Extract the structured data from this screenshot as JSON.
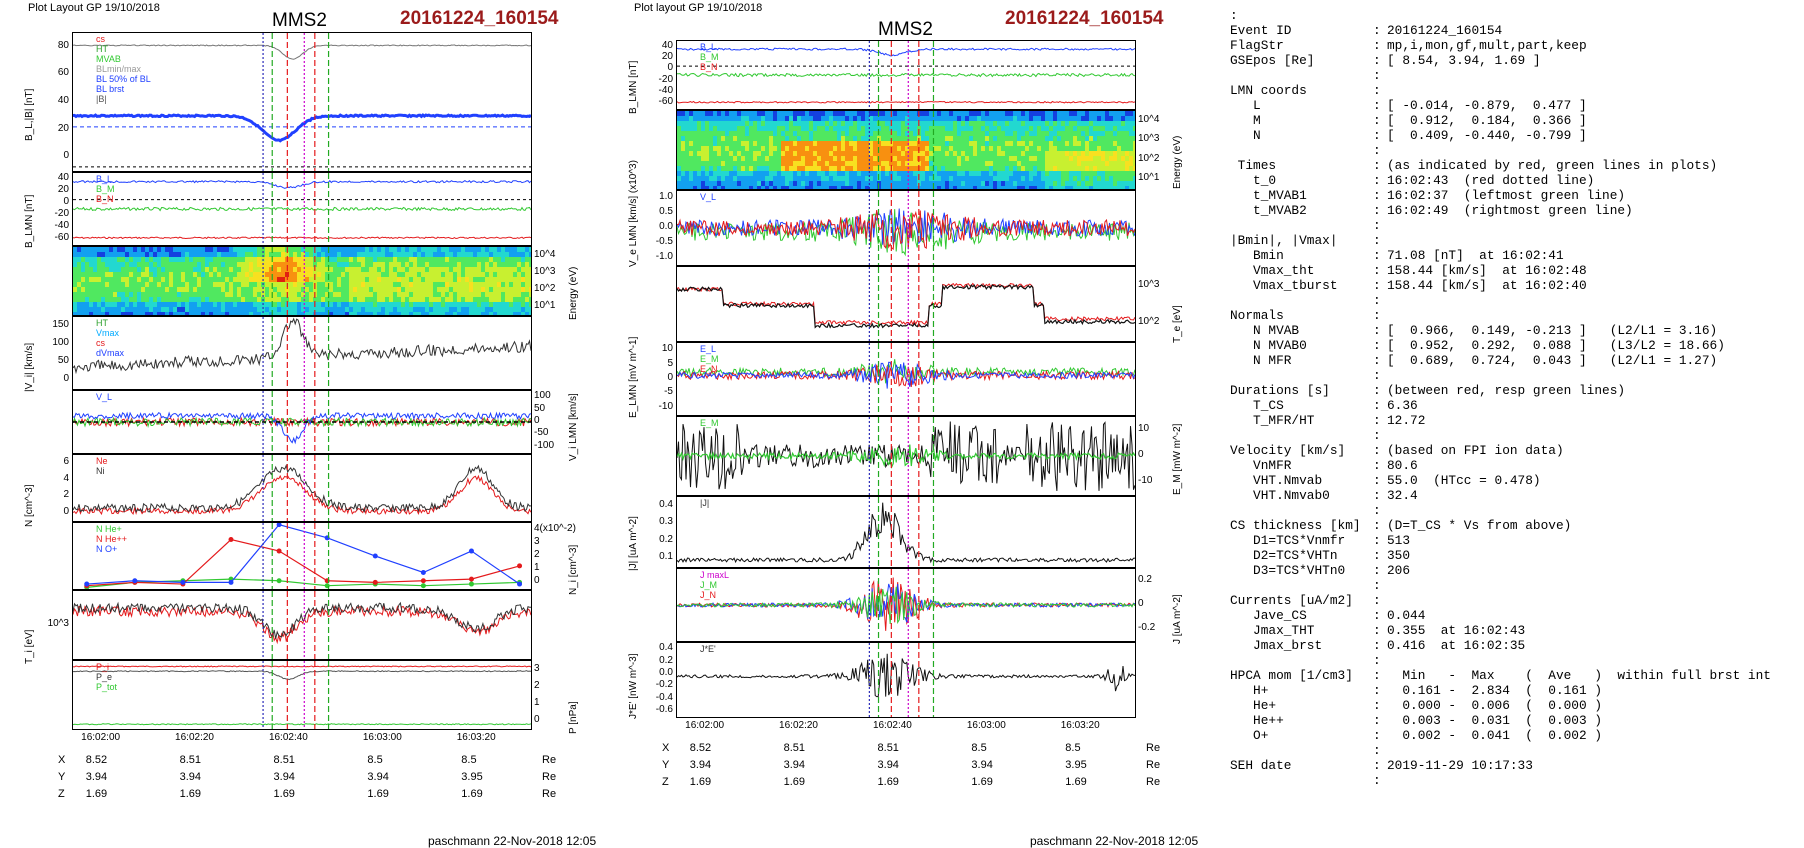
{
  "left": {
    "header": "Plot Layout GP 19/10/2018",
    "title": "MMS2",
    "event": "20161224_160154",
    "footer": "paschmann 22-Nov-2018 12:05",
    "time_ticks": [
      "16:02:00",
      "16:02:20",
      "16:02:40",
      "16:03:00",
      "16:03:20"
    ],
    "positions": {
      "labels": [
        "X",
        "Y",
        "Z"
      ],
      "unit": "Re",
      "rows": [
        [
          "8.52",
          "8.51",
          "8.51",
          "8.5",
          "8.5"
        ],
        [
          "3.94",
          "3.94",
          "3.94",
          "3.94",
          "3.95"
        ],
        [
          "1.69",
          "1.69",
          "1.69",
          "1.69",
          "1.69"
        ]
      ]
    },
    "panels": [
      {
        "ylabel": "B_L,|B| [nT]",
        "left_ticks": [
          "80",
          "60",
          "40",
          "20",
          "0"
        ],
        "legend": [
          "cs",
          "HT",
          "MVAB",
          "BLmin/max",
          "BL 50% of BL",
          "BL brst",
          "|B|"
        ],
        "legend_colors": [
          "#e41a1c",
          "#2ca02c",
          "#31c831",
          "#999999",
          "#2040ff",
          "#2040ff",
          "#555555"
        ]
      },
      {
        "ylabel": "B_LMN [nT]",
        "left_ticks": [
          "40",
          "20",
          "0",
          "-20",
          "-40",
          "-60"
        ],
        "legend": [
          "B_L",
          "B_M",
          "B_N"
        ],
        "legend_colors": [
          "#2040ff",
          "#31c831",
          "#e41a1c"
        ]
      },
      {
        "ylabel": "Energy (eV)",
        "right_ticks": [
          "10^4",
          "10^3",
          "10^2",
          "10^1"
        ]
      },
      {
        "ylabel": "|V_i| [km/s]",
        "left_ticks": [
          "150",
          "100",
          "50",
          "0"
        ],
        "legend": [
          "HT",
          "Vmax",
          "cs",
          "dVmax"
        ],
        "legend_colors": [
          "#2ca02c",
          "#00aaff",
          "#e41a1c",
          "#2040ff"
        ]
      },
      {
        "ylabel": "V_i LMN [km/s]",
        "right_ticks": [
          "100",
          "50",
          "0",
          "-50",
          "-100"
        ],
        "legend": [
          "V_L"
        ],
        "legend_colors": [
          "#2040ff"
        ]
      },
      {
        "ylabel": "N [cm^-3]",
        "left_ticks": [
          "6",
          "4",
          "2",
          "0"
        ],
        "legend": [
          "Ne",
          "Ni"
        ],
        "legend_colors": [
          "#e41a1c",
          "#333333"
        ]
      },
      {
        "ylabel": "N_i [cm^-3]",
        "right_ticks": [
          "4(x10^-2)",
          "3",
          "2",
          "1",
          "0"
        ],
        "legend": [
          "N He+",
          "N He++",
          "N O+"
        ],
        "legend_colors": [
          "#31c831",
          "#e41a1c",
          "#2040ff"
        ]
      },
      {
        "ylabel": "T_i [eV]",
        "left_ticks": [
          "10^3"
        ]
      },
      {
        "ylabel": "P [nPa]",
        "right_ticks": [
          "3",
          "2",
          "1",
          "0"
        ],
        "legend": [
          "P_i",
          "P_e",
          "P_tot"
        ],
        "legend_colors": [
          "#e41a1c",
          "#333333",
          "#31c831"
        ]
      }
    ]
  },
  "middle": {
    "header": "Plot layout GP 19/10/2018",
    "title": "MMS2",
    "event": "20161224_160154",
    "footer": "paschmann 22-Nov-2018 12:05",
    "time_ticks": [
      "16:02:00",
      "16:02:20",
      "16:02:40",
      "16:03:00",
      "16:03:20"
    ],
    "positions": {
      "labels": [
        "X",
        "Y",
        "Z"
      ],
      "unit": "Re",
      "rows": [
        [
          "8.52",
          "8.51",
          "8.51",
          "8.5",
          "8.5"
        ],
        [
          "3.94",
          "3.94",
          "3.94",
          "3.94",
          "3.95"
        ],
        [
          "1.69",
          "1.69",
          "1.69",
          "1.69",
          "1.69"
        ]
      ]
    },
    "panels": [
      {
        "ylabel": "B_LMN [nT]",
        "left_ticks": [
          "40",
          "20",
          "0",
          "-20",
          "-40",
          "-60"
        ],
        "legend": [
          "B_L",
          "B_M",
          "B_N"
        ],
        "legend_colors": [
          "#2040ff",
          "#31c831",
          "#e41a1c"
        ]
      },
      {
        "ylabel": "Energy (eV)",
        "right_ticks": [
          "10^4",
          "10^3",
          "10^2",
          "10^1"
        ]
      },
      {
        "ylabel": "V_e LMN [km/s] (x10^3)",
        "left_ticks": [
          "1.0",
          "0.5",
          "0.0",
          "-0.5",
          "-1.0"
        ],
        "legend": [
          "V_L"
        ],
        "legend_colors": [
          "#2040ff"
        ]
      },
      {
        "ylabel": "T_e [eV]",
        "right_ticks": [
          "10^3",
          "10^2"
        ]
      },
      {
        "ylabel": "E_LMN [mV m^-1]",
        "left_ticks": [
          "10",
          "5",
          "0",
          "-5",
          "-10"
        ],
        "legend": [
          "E_L",
          "E_M",
          "E_N"
        ],
        "legend_colors": [
          "#2040ff",
          "#31c831",
          "#e41a1c"
        ]
      },
      {
        "ylabel": "E_M [mW m^-2]",
        "right_ticks": [
          "10",
          "0",
          "-10"
        ],
        "legend": [
          "E_M"
        ],
        "legend_colors": [
          "#31c831"
        ]
      },
      {
        "ylabel": "|J| [uA m^-2]",
        "left_ticks": [
          "0.4",
          "0.3",
          "0.2",
          "0.1"
        ],
        "legend": [
          "|J|"
        ],
        "legend_colors": [
          "#333333"
        ]
      },
      {
        "ylabel": "J [uA m^-2]",
        "right_ticks": [
          "0.2",
          "0",
          "-0.2"
        ],
        "legend": [
          "J maxL",
          "J_M",
          "J_N"
        ],
        "legend_colors": [
          "#cc00cc",
          "#31c831",
          "#e41a1c"
        ]
      },
      {
        "ylabel": "J*E' [nW m^-3]",
        "left_ticks": [
          "0.4",
          "0.2",
          "0.0",
          "-0.2",
          "-0.4",
          "-0.6"
        ],
        "legend": [
          "J*E'"
        ],
        "legend_colors": [
          "#333333"
        ]
      }
    ]
  },
  "summary": [
    [
      ":",
      "",
      ""
    ],
    [
      "Event ID",
      ":",
      "20161224_160154"
    ],
    [
      "FlagStr",
      ":",
      "mp,i,mon,gf,mult,part,keep"
    ],
    [
      "GSEpos [Re]",
      ":",
      "[ 8.54, 3.94, 1.69 ]"
    ],
    [
      "",
      ":",
      ""
    ],
    [
      "LMN coords",
      ":",
      ""
    ],
    [
      "   L",
      ":",
      "[ -0.014, -0.879,  0.477 ]"
    ],
    [
      "   M",
      ":",
      "[  0.912,  0.184,  0.366 ]"
    ],
    [
      "   N",
      ":",
      "[  0.409, -0.440, -0.799 ]"
    ],
    [
      "",
      ":",
      ""
    ],
    [
      " Times",
      ":",
      "(as indicated by red, green lines in plots)"
    ],
    [
      "   t_0",
      ":",
      "16:02:43  (red dotted line)"
    ],
    [
      "   t_MVAB1",
      ":",
      "16:02:37  (leftmost green line)"
    ],
    [
      "   t_MVAB2",
      ":",
      "16:02:49  (rightmost green line)"
    ],
    [
      "",
      ":",
      ""
    ],
    [
      "|Bmin|, |Vmax|",
      ":",
      ""
    ],
    [
      "   Bmin",
      ":",
      "71.08 [nT]  at 16:02:41"
    ],
    [
      "   Vmax_tht",
      ":",
      "158.44 [km/s]  at 16:02:48"
    ],
    [
      "   Vmax_tburst",
      ":",
      "158.44 [km/s]  at 16:02:40"
    ],
    [
      "",
      ":",
      ""
    ],
    [
      "Normals",
      ":",
      ""
    ],
    [
      "   N MVAB",
      ":",
      "[  0.966,  0.149, -0.213 ]   (L2/L1 = 3.16)"
    ],
    [
      "   N MVAB0",
      ":",
      "[  0.952,  0.292,  0.088 ]   (L3/L2 = 18.66)"
    ],
    [
      "   N MFR",
      ":",
      "[  0.689,  0.724,  0.043 ]   (L2/L1 = 1.27)"
    ],
    [
      "",
      ":",
      ""
    ],
    [
      "Durations [s]",
      ":",
      "(between red, resp green lines)"
    ],
    [
      "   T_CS",
      ":",
      "6.36"
    ],
    [
      "   T_MFR/HT",
      ":",
      "12.72"
    ],
    [
      "",
      ":",
      ""
    ],
    [
      "Velocity [km/s]",
      ":",
      "(based on FPI ion data)"
    ],
    [
      "   VnMFR",
      ":",
      "80.6"
    ],
    [
      "   VHT.Nmvab",
      ":",
      "55.0  (HTcc = 0.478)"
    ],
    [
      "   VHT.Nmvab0",
      ":",
      "32.4"
    ],
    [
      "",
      ":",
      ""
    ],
    [
      "CS thickness [km]",
      ":",
      "(D=T_CS * Vs from above)"
    ],
    [
      "   D1=TCS*Vnmfr",
      ":",
      "513"
    ],
    [
      "   D2=TCS*VHTn",
      ":",
      "350"
    ],
    [
      "   D3=TCS*VHTn0",
      ":",
      "206"
    ],
    [
      "",
      ":",
      ""
    ],
    [
      "Currents [uA/m2]",
      ":",
      ""
    ],
    [
      "   Jave_CS",
      ":",
      "0.044"
    ],
    [
      "   Jmax_THT",
      ":",
      "0.355  at 16:02:43"
    ],
    [
      "   Jmax_brst",
      ":",
      "0.416  at 16:02:35"
    ],
    [
      "",
      ":",
      ""
    ],
    [
      "HPCA mom [1/cm3]",
      ":",
      "  Min   -  Max    (  Ave   )  within full brst int"
    ],
    [
      "   H+",
      ":",
      "  0.161 -  2.834  (  0.161 )"
    ],
    [
      "   He+",
      ":",
      "  0.000 -  0.006  (  0.000 )"
    ],
    [
      "   He++",
      ":",
      "  0.003 -  0.031  (  0.003 )"
    ],
    [
      "   O+",
      ":",
      "  0.002 -  0.041  (  0.002 )"
    ],
    [
      "",
      ":",
      ""
    ],
    [
      "SEH date",
      ":",
      "2019-11-29 10:17:33"
    ],
    [
      "",
      ":",
      ""
    ]
  ],
  "chart_data": [
    {
      "type": "line",
      "title": "MMS2",
      "subtitle": "20161224_160154",
      "x_ticks": [
        "16:02:00",
        "16:02:20",
        "16:02:40",
        "16:03:00",
        "16:03:20"
      ],
      "markers": {
        "red_dotted": "16:02:43",
        "green_left": "16:02:37",
        "green_right": "16:02:49"
      },
      "series_summary": {
        "B_L_|B|": {
          "ylim": [
            0,
            85
          ],
          "baseline": 33,
          "min": 23
        },
        "Ni_He_He++_O+": {
          "x": [
            "16:01:55",
            "16:02:05",
            "16:02:15",
            "16:02:25",
            "16:02:35",
            "16:02:45",
            "16:02:55",
            "16:03:05",
            "16:03:15",
            "16:03:25"
          ],
          "N_He+": [
            0.1,
            0.4,
            0.5,
            0.6,
            0.5,
            0.2,
            0.3,
            0.2,
            0.3,
            0.4
          ],
          "N_He++": [
            0.2,
            0.4,
            0.3,
            3.0,
            2.3,
            0.5,
            0.4,
            0.5,
            0.6,
            1.4
          ],
          "N_O+": [
            0.3,
            0.5,
            0.4,
            0.4,
            3.9,
            3.1,
            2.0,
            1.0,
            2.3,
            0.3
          ]
        }
      }
    },
    {
      "type": "line",
      "title": "MMS2",
      "subtitle": "20161224_160154",
      "x_ticks": [
        "16:02:00",
        "16:02:20",
        "16:02:40",
        "16:03:00",
        "16:03:20"
      ],
      "series_summary": {
        "|J|": {
          "ylim": [
            0,
            0.45
          ],
          "max": 0.416
        }
      }
    }
  ]
}
